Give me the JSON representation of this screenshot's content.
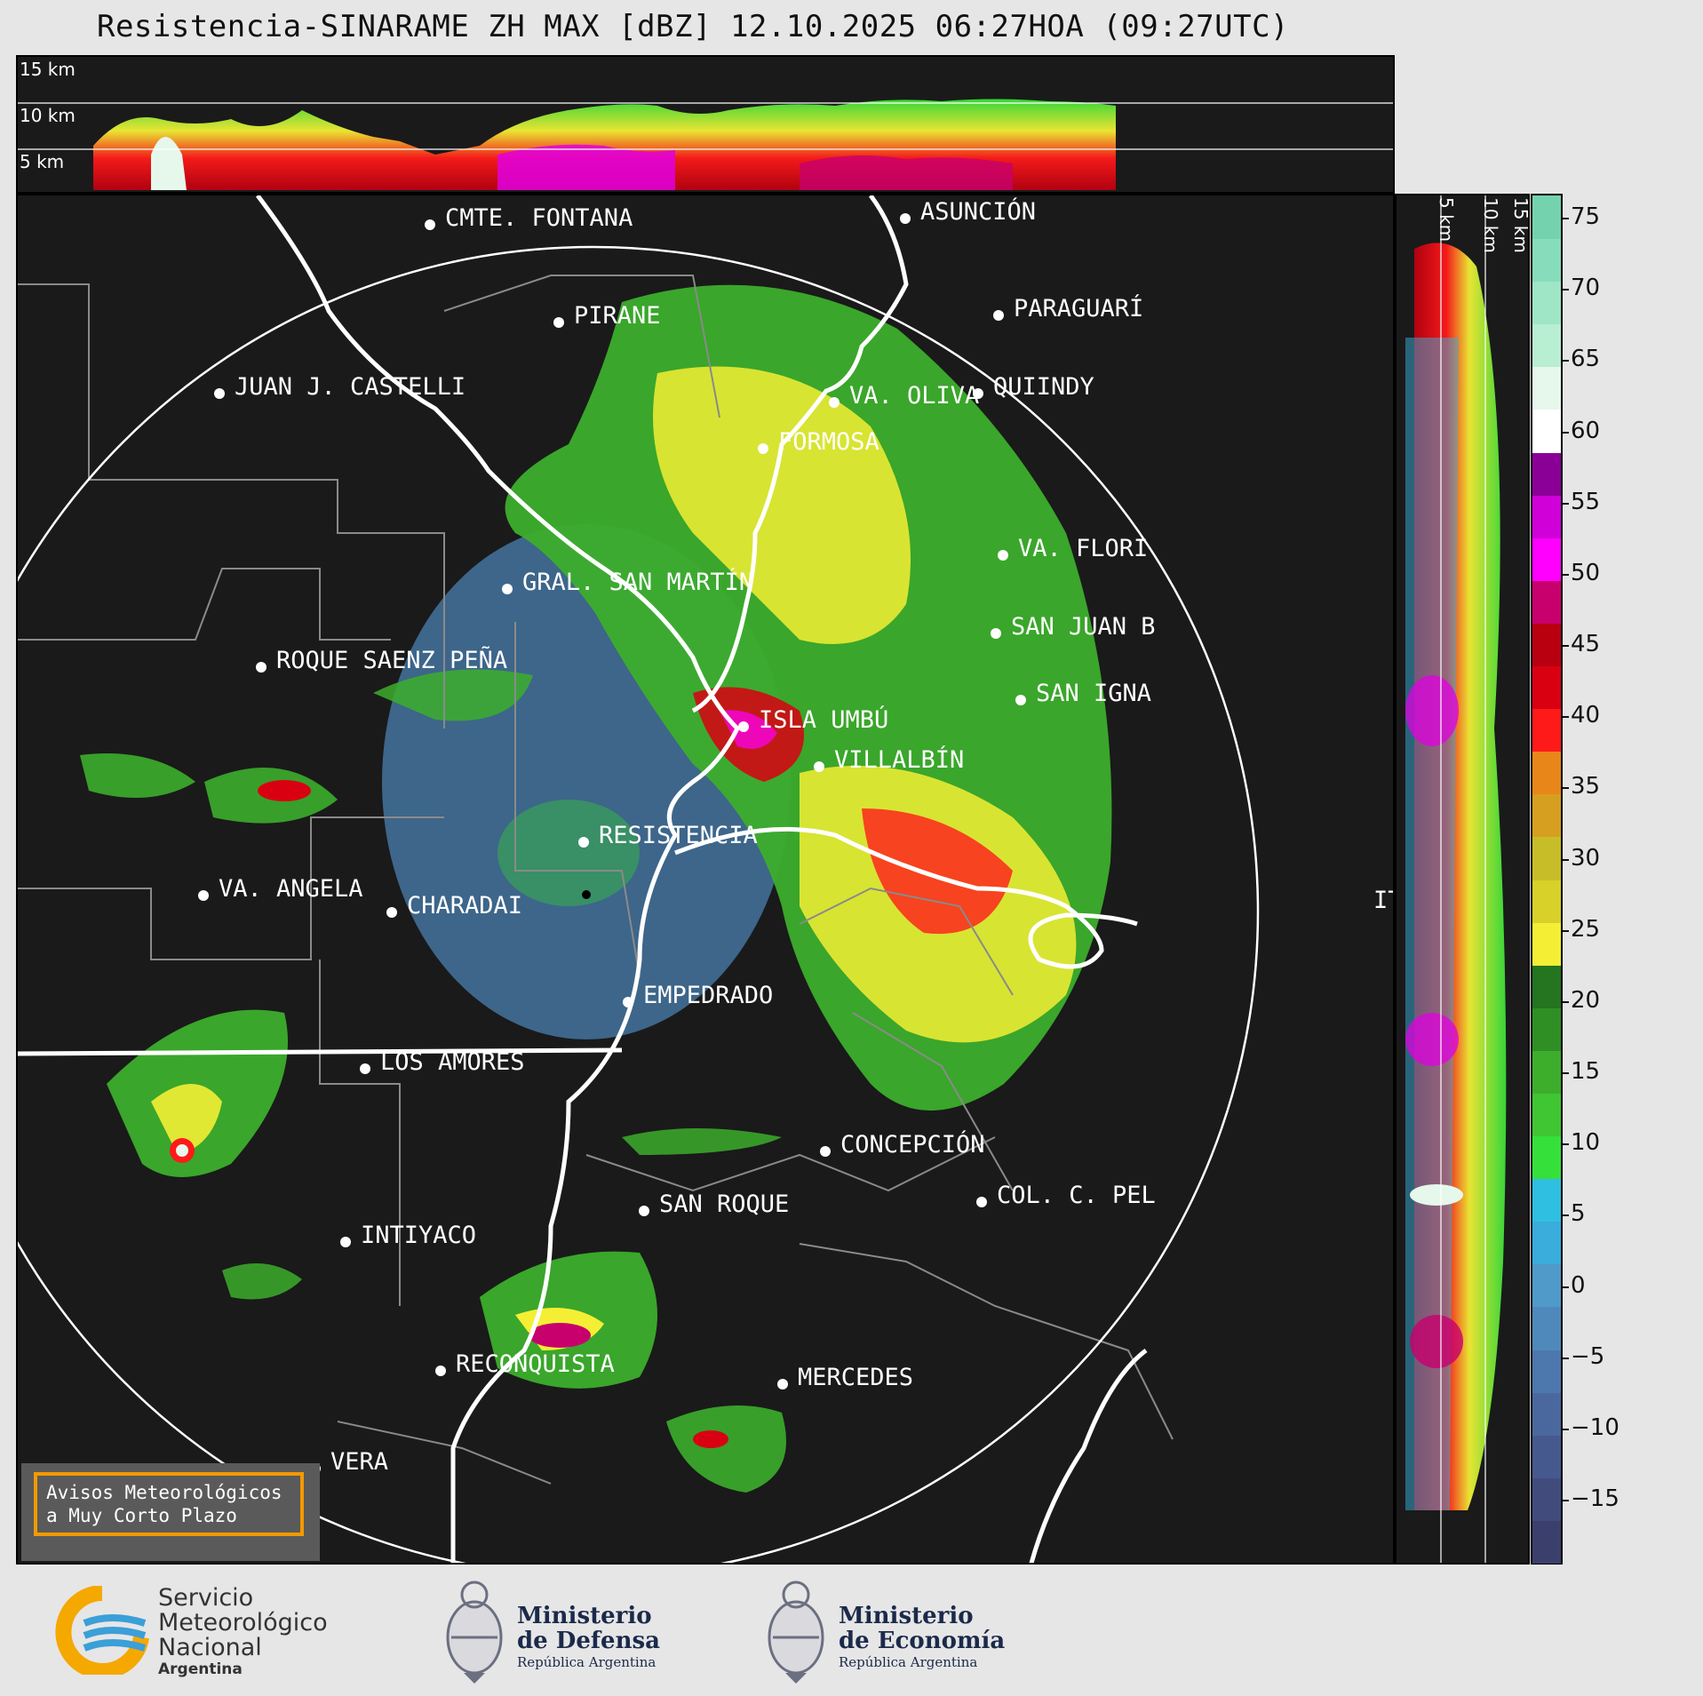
{
  "title": "Resistencia-SINARAME ZH MAX [dBZ] 12.10.2025 06:27HOA (09:27UTC)",
  "top_altitudes": [
    "15 km",
    "10 km",
    "5 km"
  ],
  "side_altitudes": [
    "5 km",
    "10 km",
    "15 km"
  ],
  "cities": [
    {
      "name": "CMTE. FONTANA"
    },
    {
      "name": "ASUNCIÓN"
    },
    {
      "name": "PARAGUARÍ"
    },
    {
      "name": "PIRANE"
    },
    {
      "name": "JUAN J. CASTELLI"
    },
    {
      "name": "VA. OLIVA"
    },
    {
      "name": "QUIINDY"
    },
    {
      "name": "FORMOSA"
    },
    {
      "name": "VA. FLORI"
    },
    {
      "name": "GRAL. SAN MARTÍN"
    },
    {
      "name": "SAN JUAN B"
    },
    {
      "name": "ROQUE SAENZ PEÑA"
    },
    {
      "name": "SAN IGNA"
    },
    {
      "name": "ISLA UMBÚ"
    },
    {
      "name": "VILLALBÍN"
    },
    {
      "name": "RESISTENCIA"
    },
    {
      "name": "IT"
    },
    {
      "name": "VA. ANGELA"
    },
    {
      "name": "CHARADAI"
    },
    {
      "name": "EMPEDRADO"
    },
    {
      "name": "LOS AMORES"
    },
    {
      "name": "CONCEPCIÓN"
    },
    {
      "name": "SAN ROQUE"
    },
    {
      "name": "COL. C. PEL"
    },
    {
      "name": "INTIYACO"
    },
    {
      "name": "RECONQUISTA"
    },
    {
      "name": "MERCEDES"
    },
    {
      "name": "VERA"
    }
  ],
  "colorbar": {
    "ticks": [
      "75",
      "70",
      "65",
      "60",
      "55",
      "50",
      "45",
      "40",
      "35",
      "30",
      "25",
      "20",
      "15",
      "10",
      "5",
      "0",
      "−5",
      "−10",
      "−15"
    ],
    "colors": [
      "#3b3f6b",
      "#414c7d",
      "#46598e",
      "#4a689e",
      "#4d78ad",
      "#4f89bb",
      "#4f9ac8",
      "#3aaddc",
      "#2fbfe0",
      "#36e03a",
      "#40c632",
      "#3cae2c",
      "#2f8f25",
      "#247420",
      "#f4ef34",
      "#d7d12a",
      "#c7bd28",
      "#d69f20",
      "#e8861a",
      "#ff1a1a",
      "#d90012",
      "#b80010",
      "#c8006e",
      "#ff00ff",
      "#d000d8",
      "#8a0096",
      "#ffffff",
      "#e6f7ec",
      "#b8eed2",
      "#9ee6c6",
      "#86dcbb",
      "#74d3ae"
    ]
  },
  "badge": {
    "line1": "Avisos Meteorológicos",
    "line2": "a Muy Corto Plazo"
  },
  "footer": {
    "smn_1": "Servicio",
    "smn_2": "Meteorológico",
    "smn_3": "Nacional",
    "smn_4": "Argentina",
    "defensa_1": "Ministerio",
    "defensa_2": "de Defensa",
    "defensa_3": "República Argentina",
    "economia_1": "Ministerio",
    "economia_2": "de Economía",
    "economia_3": "República Argentina"
  }
}
